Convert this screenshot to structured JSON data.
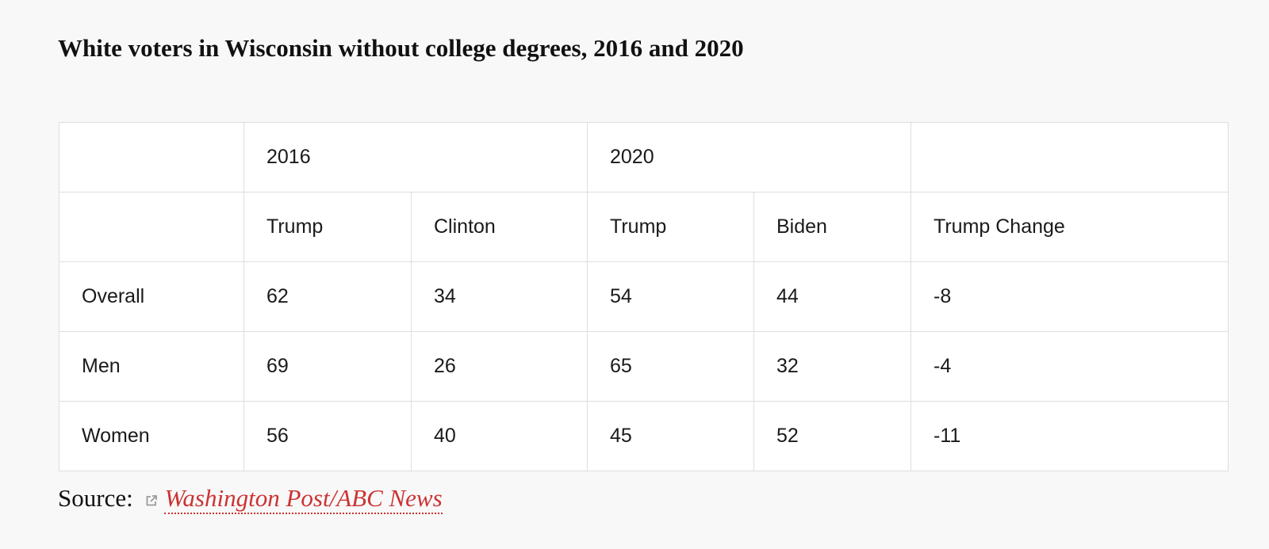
{
  "title": "White voters in Wisconsin without college degrees, 2016 and 2020",
  "table": {
    "year_headers": [
      "",
      "2016",
      "2020",
      ""
    ],
    "candidate_headers": [
      "",
      "Trump",
      "Clinton",
      "Trump",
      "Biden",
      "Trump Change"
    ],
    "rows": [
      {
        "label": "Overall",
        "values": [
          "62",
          "34",
          "54",
          "44",
          "-8"
        ]
      },
      {
        "label": "Men",
        "values": [
          "69",
          "26",
          "65",
          "32",
          "-4"
        ]
      },
      {
        "label": "Women",
        "values": [
          "56",
          "40",
          "45",
          "52",
          "-11"
        ]
      }
    ]
  },
  "source": {
    "prefix": "Source:",
    "icon": "external-link-icon",
    "link_text": "Washington Post/ABC News"
  },
  "colors": {
    "background": "#f8f8f8",
    "table_background": "#ffffff",
    "border": "#dedede",
    "link": "#cc3333"
  }
}
